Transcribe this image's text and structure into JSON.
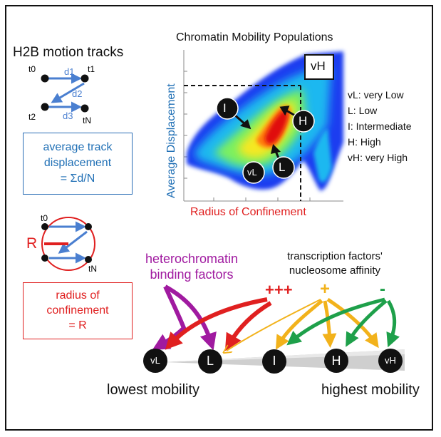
{
  "tracks": {
    "title": "H2B motion tracks",
    "labels": {
      "t0": "t0",
      "t1": "t1",
      "t2": "t2",
      "tN": "tN",
      "d1": "d1",
      "d2": "d2",
      "d3": "d3"
    },
    "box": {
      "line1": "average track",
      "line2": "displacement",
      "line3": "= Σd/N"
    }
  },
  "confinement": {
    "labels": {
      "t0": "t0",
      "tN": "tN",
      "R": "R"
    },
    "box": {
      "line1": "radius of",
      "line2": "confinement",
      "line3": "= R"
    }
  },
  "plot": {
    "title": "Chromatin Mobility Populations",
    "xlabel": "Radius of Confinement",
    "ylabel": "Average Displacement",
    "corner_label": "vH",
    "markers": {
      "I": "I",
      "H": "H",
      "vL": "vL",
      "L": "L"
    }
  },
  "legend": [
    "vL: very Low",
    "L: Low",
    "I: Intermediate",
    "H: High",
    "vH: very High"
  ],
  "factors": {
    "hetero_line1": "heterochromatin",
    "hetero_line2": "binding factors",
    "tf_line1": "transcription factors'",
    "tf_line2": "nucleosome affinity",
    "plus3": "+++",
    "plus1": "+",
    "minus": "-"
  },
  "scale": {
    "nodes": [
      "vL",
      "L",
      "I",
      "H",
      "vH"
    ],
    "lowest": "lowest mobility",
    "highest": "highest mobility"
  },
  "colors": {
    "blue_text": "#1f6fb5",
    "red": "#e02020",
    "purple": "#a01aa0",
    "yellow": "#f2b21b",
    "green": "#1ea04a",
    "arrow_blue": "#4a7fd0"
  }
}
